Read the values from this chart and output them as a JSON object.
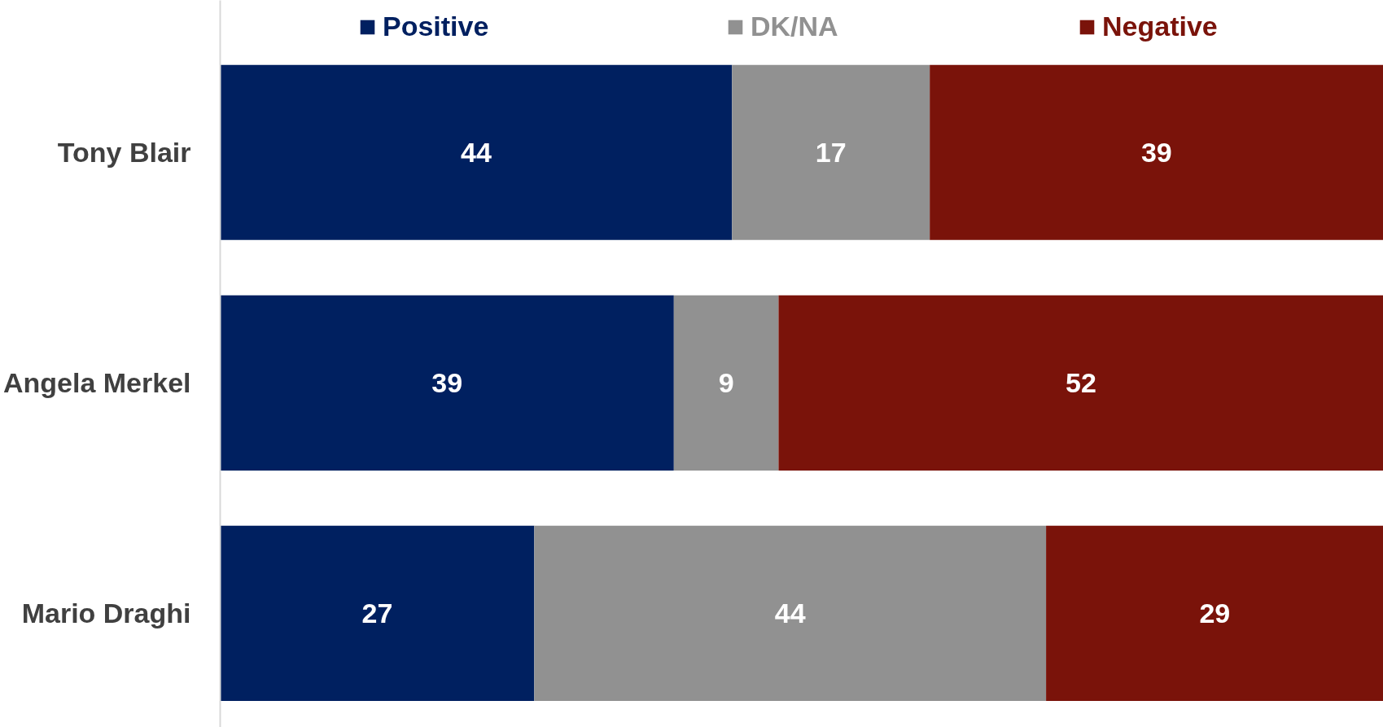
{
  "chart_data": {
    "type": "bar",
    "orientation": "horizontal",
    "stacked": true,
    "categories": [
      "Tony Blair",
      "Angela Merkel",
      "Mario Draghi"
    ],
    "series": [
      {
        "name": "Positive",
        "color": "#002060",
        "values": [
          44,
          39,
          27
        ]
      },
      {
        "name": "DK/NA",
        "color": "#919191",
        "values": [
          17,
          9,
          44
        ]
      },
      {
        "name": "Negative",
        "color": "#7a130a",
        "values": [
          39,
          52,
          29
        ]
      }
    ],
    "xlim": [
      0,
      100
    ],
    "data_labels": true,
    "legend": "top",
    "grid": false
  }
}
